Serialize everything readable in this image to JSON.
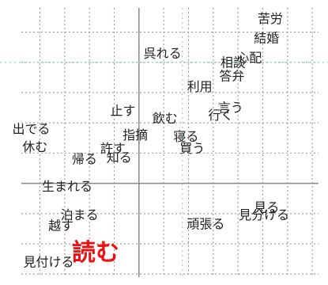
{
  "chart_data": {
    "type": "scatter",
    "title": "",
    "xlabel": "",
    "ylabel": "",
    "grid": true,
    "xlim": [
      -9.5,
      14.5
    ],
    "ylim": [
      -6.2,
      11.6
    ],
    "axis_zero": {
      "x": 0,
      "y": 0
    },
    "reference_lines": {
      "vertical_x": 3.5,
      "horizontal_y": 8.0
    },
    "highlight_color": "#ee1111",
    "points": [
      {
        "label": "苦労",
        "x": 10.6,
        "y": 10.9
      },
      {
        "label": "結婚",
        "x": 10.3,
        "y": 9.6
      },
      {
        "label": "呉れる",
        "x": 1.9,
        "y": 8.6
      },
      {
        "label": "相談",
        "x": 7.6,
        "y": 8.0
      },
      {
        "label": "心配",
        "x": 8.9,
        "y": 8.3
      },
      {
        "label": "答弁",
        "x": 7.5,
        "y": 7.1
      },
      {
        "label": "利用",
        "x": 4.9,
        "y": 6.4
      },
      {
        "label": "言う",
        "x": 7.4,
        "y": 5.0
      },
      {
        "label": "行く",
        "x": 6.6,
        "y": 4.5
      },
      {
        "label": "止す",
        "x": -1.3,
        "y": 4.8
      },
      {
        "label": "飲む",
        "x": 2.1,
        "y": 4.3
      },
      {
        "label": "出でる",
        "x": -8.7,
        "y": 3.6
      },
      {
        "label": "休む",
        "x": -8.4,
        "y": 2.4
      },
      {
        "label": "指摘",
        "x": -0.3,
        "y": 3.2
      },
      {
        "label": "寝る",
        "x": 3.8,
        "y": 3.1
      },
      {
        "label": "許す",
        "x": -2.1,
        "y": 2.3
      },
      {
        "label": "買う",
        "x": 4.3,
        "y": 2.3
      },
      {
        "label": "帰る",
        "x": -4.4,
        "y": 1.6
      },
      {
        "label": "知る",
        "x": -1.6,
        "y": 1.7
      },
      {
        "label": "生まれる",
        "x": -5.8,
        "y": -0.2
      },
      {
        "label": "見る",
        "x": 10.3,
        "y": -1.6
      },
      {
        "label": "見分ける",
        "x": 10.1,
        "y": -2.1
      },
      {
        "label": "頑張る",
        "x": 5.4,
        "y": -2.7
      },
      {
        "label": "泊まる",
        "x": -4.8,
        "y": -2.1
      },
      {
        "label": "越す",
        "x": -6.3,
        "y": -2.8
      },
      {
        "label": "見付ける",
        "x": -7.3,
        "y": -5.2
      },
      {
        "label": "読む",
        "x": -3.5,
        "y": -4.6,
        "highlight": true
      }
    ]
  }
}
